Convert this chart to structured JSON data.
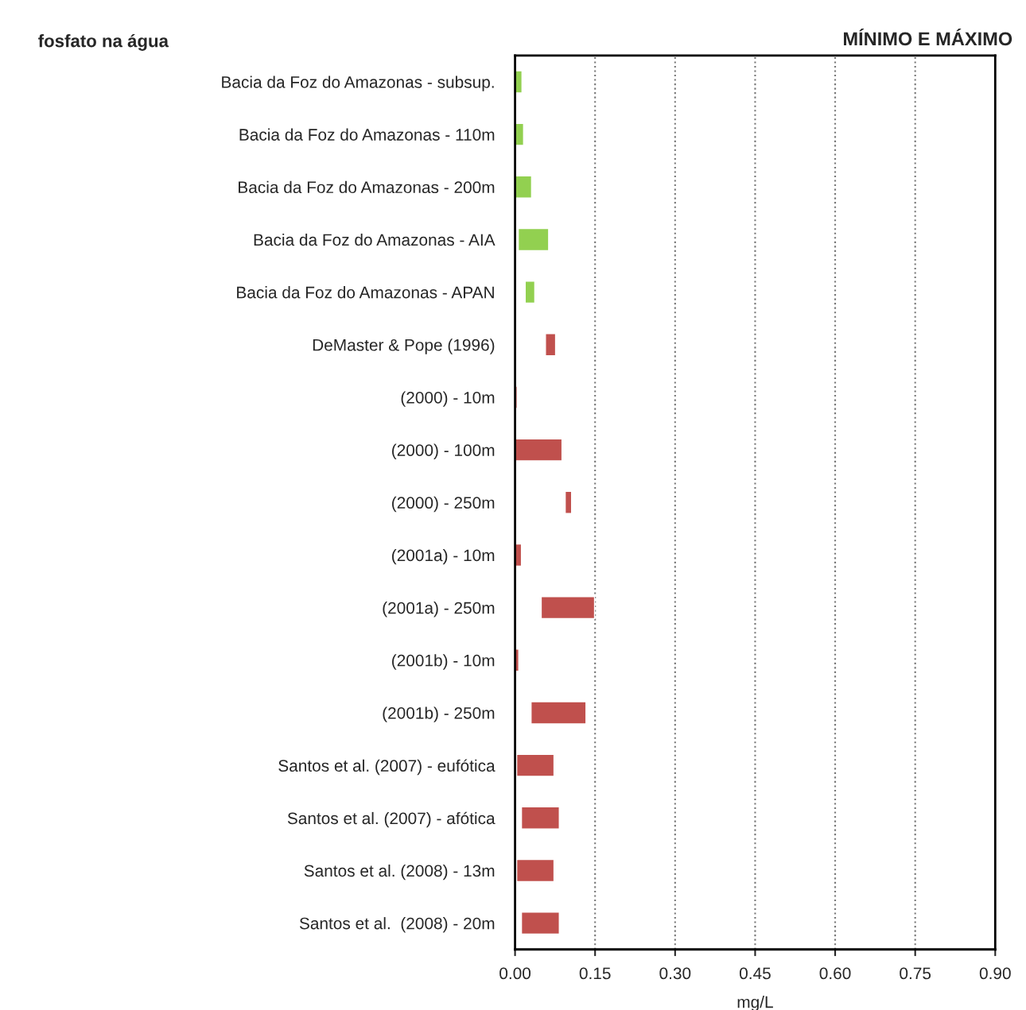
{
  "chart_data": {
    "type": "bar",
    "orientation": "horizontal",
    "title": "fosfato na água",
    "subtitle": "MÍNIMO E MÁXIMO",
    "xlabel": "mg/L",
    "categories": [
      "Bacia da Foz do Amazonas - subsup.",
      "Bacia da Foz do Amazonas - 110m",
      "Bacia da Foz do Amazonas - 200m",
      "Bacia da Foz do Amazonas - AIA",
      "Bacia da Foz do Amazonas - APAN",
      "DeMaster & Pope (1996)",
      "(2000) - 10m",
      "(2000) - 100m",
      "(2000) - 250m",
      "(2001a) - 10m",
      "(2001a) - 250m",
      "(2001b) - 10m",
      "(2001b) - 250m",
      "Santos et al. (2007) - eufótica",
      "Santos et al. (2007) - afótica",
      "Santos et al. (2008) - 13m",
      "Santos et al.  (2008) - 20m"
    ],
    "base": [
      0,
      0,
      0,
      0.006,
      0.019,
      0.057,
      0,
      0,
      0.094,
      0,
      0.049,
      0,
      0.03,
      0.003,
      0.012,
      0.003,
      0.012
    ],
    "values": [
      0.013,
      0.016,
      0.031,
      0.057,
      0.018,
      0.019,
      0.004,
      0.088,
      0.012,
      0.012,
      0.1,
      0.007,
      0.103,
      0.07,
      0.071,
      0.07,
      0.071
    ],
    "colors": [
      "#92d050",
      "#92d050",
      "#92d050",
      "#92d050",
      "#92d050",
      "#c0504d",
      "#c0504d",
      "#c0504d",
      "#c0504d",
      "#c0504d",
      "#c0504d",
      "#c0504d",
      "#c0504d",
      "#c0504d",
      "#c0504d",
      "#c0504d",
      "#c0504d"
    ],
    "xlim": [
      0,
      0.9
    ],
    "xticks": [
      {
        "value": 0,
        "label": "0.00"
      },
      {
        "value": 0.15,
        "label": "0.15"
      },
      {
        "value": 0.3,
        "label": "0.30"
      },
      {
        "value": 0.45,
        "label": "0.45"
      },
      {
        "value": 0.6,
        "label": "0.60"
      },
      {
        "value": 0.75,
        "label": "0.75"
      },
      {
        "value": 0.9,
        "label": "0.90"
      }
    ],
    "grid": "x"
  }
}
